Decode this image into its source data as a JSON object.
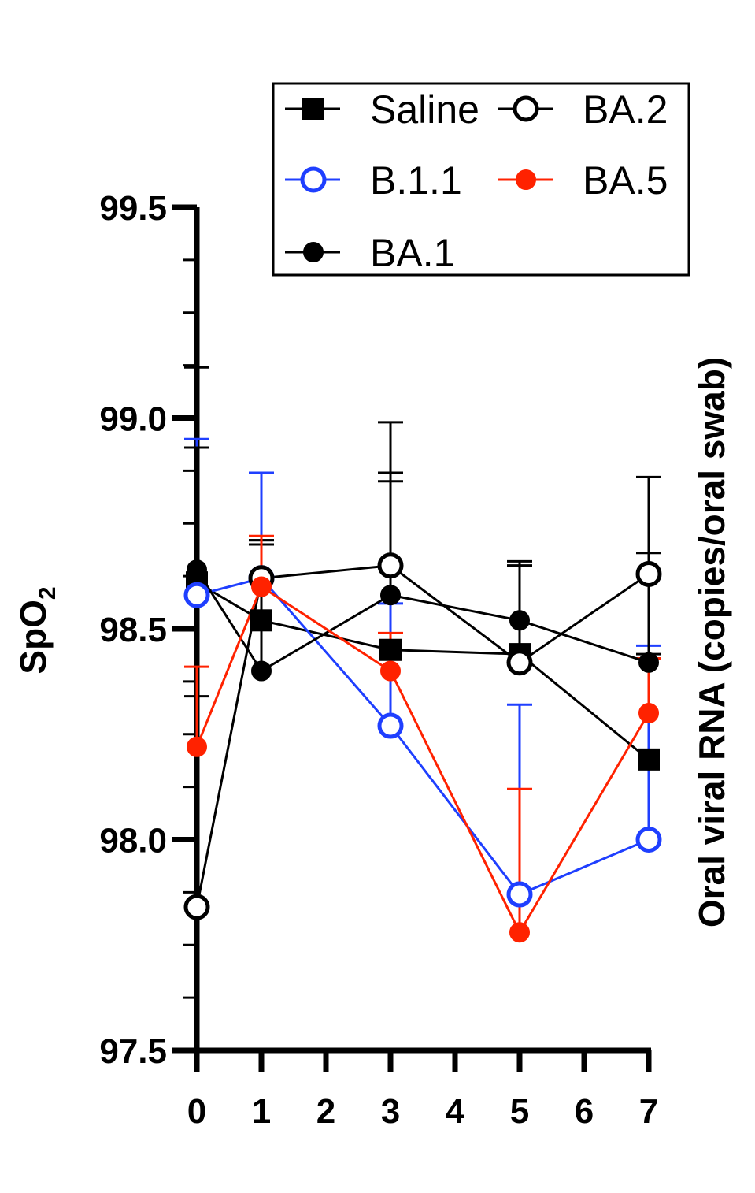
{
  "chart_data": {
    "type": "line",
    "ylabel": "SpO",
    "ylabel_sub": "2",
    "right_label": "Oral viral RNA (copies/oral swab)",
    "xlabel": "",
    "x_ticks": [
      0,
      1,
      2,
      3,
      4,
      5,
      6,
      7
    ],
    "x_tick_labels": [
      "0",
      "1",
      "2",
      "3",
      "4",
      "5",
      "6",
      "7"
    ],
    "xlim": [
      0,
      7
    ],
    "y_ticks": [
      97.5,
      98.0,
      98.5,
      99.0,
      99.5
    ],
    "y_tick_labels": [
      "97.5",
      "98.0",
      "98.5",
      "99.0",
      "99.5"
    ],
    "ylim": [
      97.5,
      99.5
    ],
    "legend_position": "top-right",
    "series": [
      {
        "name": "Saline",
        "color": "#000000",
        "marker": "square",
        "filled": true,
        "x": [
          0,
          1,
          3,
          5,
          7
        ],
        "y": [
          98.61,
          98.52,
          98.45,
          98.44,
          98.19
        ],
        "err": [
          0.51,
          0.19,
          0.4,
          0.21,
          0.25
        ]
      },
      {
        "name": "B.1.1",
        "color": "#1f3fff",
        "marker": "circle",
        "filled": false,
        "x": [
          0,
          1,
          3,
          5,
          7
        ],
        "y": [
          98.58,
          98.62,
          98.27,
          97.87,
          98.0
        ],
        "err": [
          0.37,
          0.25,
          0.29,
          0.45,
          0.46
        ]
      },
      {
        "name": "BA.1",
        "color": "#000000",
        "marker": "circle",
        "filled": true,
        "x": [
          0,
          1,
          3,
          5,
          7
        ],
        "y": [
          98.64,
          98.4,
          98.58,
          98.52,
          98.42
        ],
        "err": [
          0.29,
          0.31,
          0.29,
          0.13,
          0.26
        ]
      },
      {
        "name": "BA.2",
        "color": "#000000",
        "marker": "circle",
        "filled": false,
        "x": [
          0,
          1,
          3,
          5,
          7
        ],
        "y": [
          97.84,
          98.62,
          98.65,
          98.42,
          98.63
        ],
        "err": [
          0.5,
          0.08,
          0.34,
          0.24,
          0.23
        ]
      },
      {
        "name": "BA.5",
        "color": "#ff2200",
        "marker": "circle",
        "filled": true,
        "x": [
          0,
          1,
          3,
          5,
          7
        ],
        "y": [
          98.22,
          98.6,
          98.4,
          97.78,
          98.3
        ],
        "err": [
          0.19,
          0.12,
          0.09,
          0.34,
          0.13
        ]
      }
    ]
  }
}
